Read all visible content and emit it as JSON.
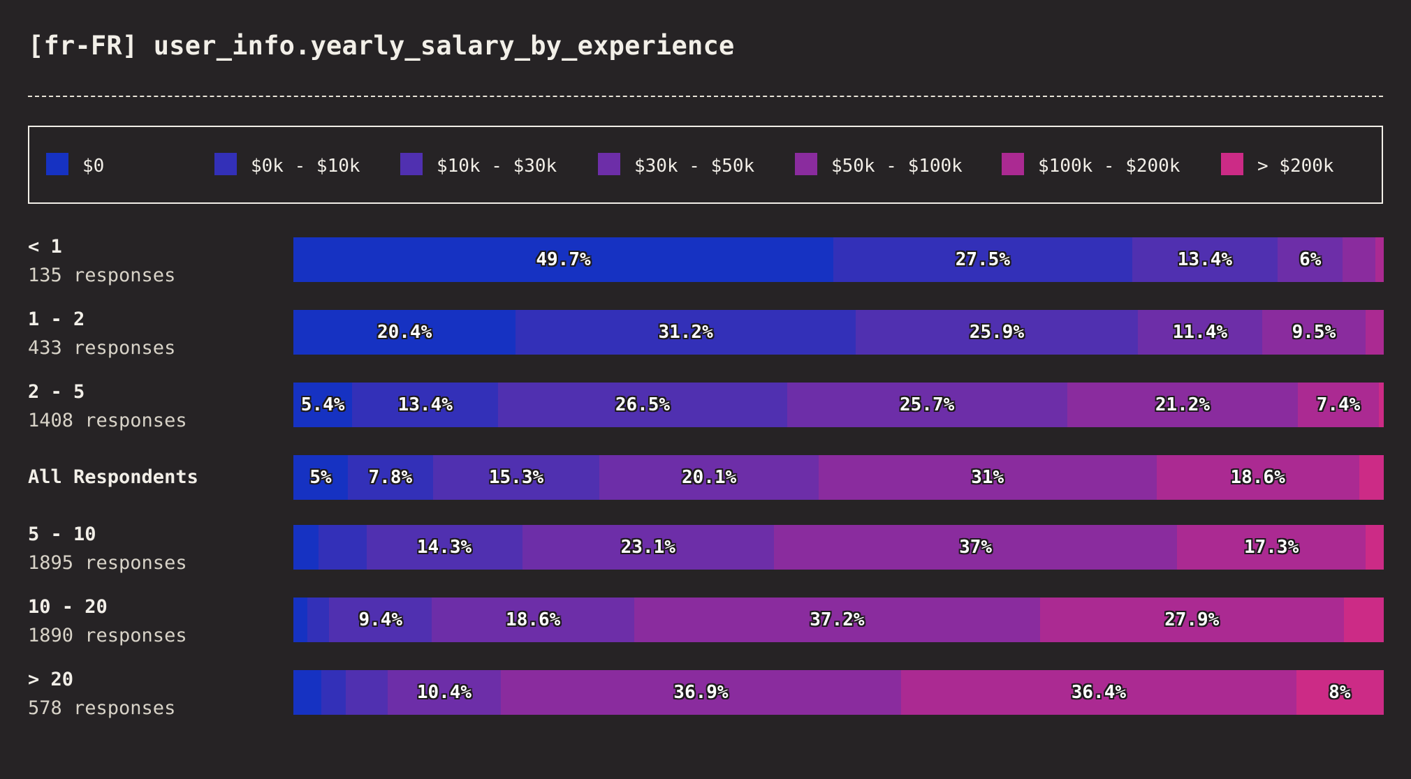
{
  "chart_data": {
    "type": "bar",
    "orientation": "horizontal",
    "stacked": true,
    "normalized": true,
    "title": "[fr-FR] user_info.yearly_salary_by_experience",
    "legend_position": "top",
    "series": [
      {
        "name": "$0",
        "color": "#1632c2"
      },
      {
        "name": "$0k - $10k",
        "color": "#3330b8"
      },
      {
        "name": "$10k - $30k",
        "color": "#5030b0"
      },
      {
        "name": "$30k - $50k",
        "color": "#6d2ea8"
      },
      {
        "name": "$50k - $100k",
        "color": "#8a2c9e"
      },
      {
        "name": "$100k - $200k",
        "color": "#ab2a92"
      },
      {
        "name": "> $200k",
        "color": "#cc2b86"
      }
    ],
    "rows": [
      {
        "label": "< 1",
        "responses": "135 responses",
        "values": [
          49.7,
          27.5,
          13.4,
          6.0,
          3.0,
          0.7,
          0.0
        ]
      },
      {
        "label": "1 - 2",
        "responses": "433 responses",
        "values": [
          20.4,
          31.2,
          25.9,
          11.4,
          9.5,
          1.6,
          0.0
        ]
      },
      {
        "label": "2 - 5",
        "responses": "1408 responses",
        "values": [
          5.4,
          13.4,
          26.5,
          25.7,
          21.2,
          7.4,
          0.4
        ]
      },
      {
        "label": "All Respondents",
        "responses": "",
        "values": [
          5.0,
          7.8,
          15.3,
          20.1,
          31.0,
          18.6,
          2.2
        ]
      },
      {
        "label": "5 - 10",
        "responses": "1895 responses",
        "values": [
          2.3,
          4.4,
          14.3,
          23.1,
          37.0,
          17.3,
          1.6
        ]
      },
      {
        "label": "10 - 20",
        "responses": "1890 responses",
        "values": [
          1.3,
          2.0,
          9.4,
          18.6,
          37.2,
          27.9,
          3.6
        ]
      },
      {
        "label": "> 20",
        "responses": "578 responses",
        "values": [
          2.6,
          2.2,
          3.9,
          10.4,
          36.9,
          36.4,
          8.0
        ]
      }
    ]
  }
}
